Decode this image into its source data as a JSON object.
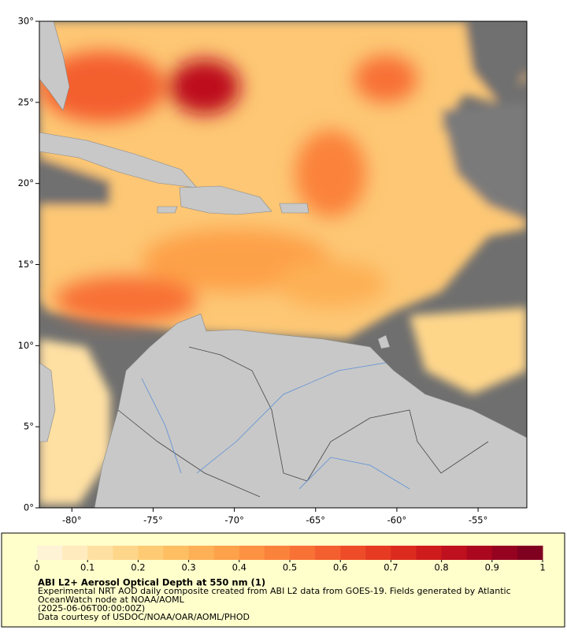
{
  "chart_data": {
    "type": "map",
    "title": "ABI L2+ Aerosol Optical Depth at 550 nm (1)",
    "description": [
      "Experimental NRT AOD daily composite created from ABI L2 data from GOES-19. Fields generated by Atlantic",
      "OceanWatch node at NOAA/AOML",
      "(2025-06-06T00:00:00Z)",
      "Data courtesy of USDOC/NOAA/OAR/AOML/PHOD"
    ],
    "xlim": [
      -82,
      -52
    ],
    "ylim": [
      0,
      30
    ],
    "xticks": [
      {
        "value": -80,
        "label": "-80°"
      },
      {
        "value": -75,
        "label": "-75°"
      },
      {
        "value": -70,
        "label": "-70°"
      },
      {
        "value": -65,
        "label": "-65°"
      },
      {
        "value": -60,
        "label": "-60°"
      },
      {
        "value": -55,
        "label": "-55°"
      }
    ],
    "yticks": [
      {
        "value": 0,
        "label": "0°"
      },
      {
        "value": 5,
        "label": "5°"
      },
      {
        "value": 10,
        "label": "10°"
      },
      {
        "value": 15,
        "label": "15°"
      },
      {
        "value": 20,
        "label": "20°"
      },
      {
        "value": 25,
        "label": "25°"
      },
      {
        "value": 30,
        "label": "30°"
      }
    ],
    "clim": [
      0,
      1
    ],
    "cticks": [
      0,
      0.1,
      0.2,
      0.3,
      0.4,
      0.5,
      0.6,
      0.7,
      0.8,
      0.9,
      1
    ],
    "colors": [
      "#fff3d6",
      "#ffebbe",
      "#ffe0a3",
      "#fed68a",
      "#fecb74",
      "#febe62",
      "#fdb055",
      "#fda14a",
      "#fc9242",
      "#fb823b",
      "#f87135",
      "#f45f2f",
      "#ee4c29",
      "#e63a23",
      "#dc2a1f",
      "#cf1b1c",
      "#be101e",
      "#ab071f",
      "#960320",
      "#800020"
    ]
  }
}
